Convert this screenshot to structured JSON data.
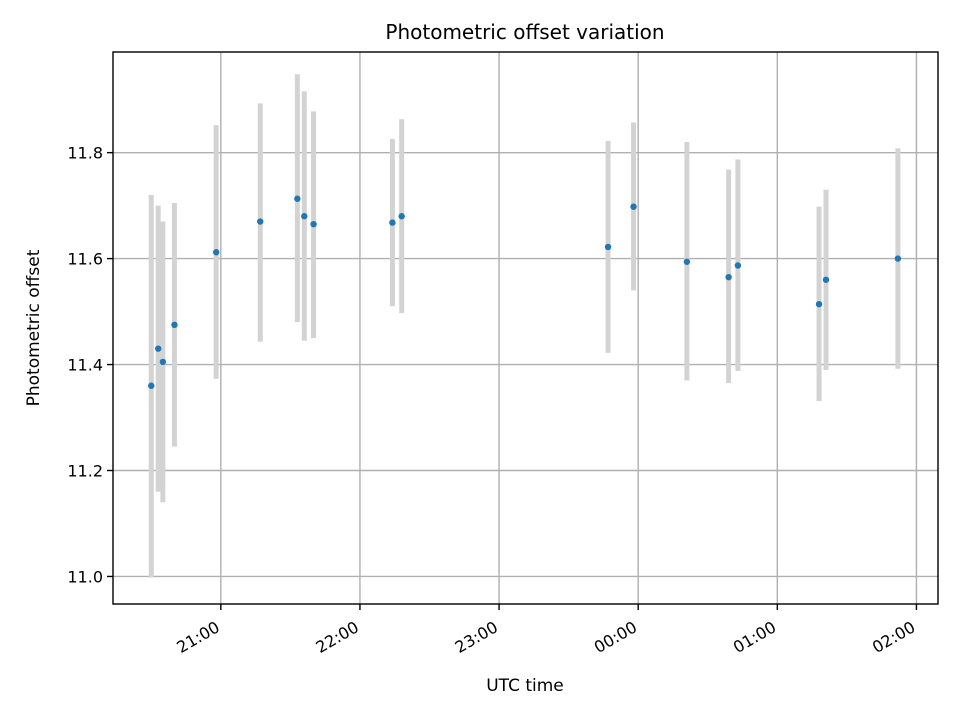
{
  "chart_data": {
    "type": "scatter",
    "title": "Photometric offset variation",
    "xlabel": "UTC time",
    "ylabel": "Photometric offset",
    "x_ticks": [
      "21:00",
      "22:00",
      "23:00",
      "00:00",
      "01:00",
      "02:00"
    ],
    "x_tick_hours": [
      21,
      22,
      23,
      24,
      25,
      26
    ],
    "xlim_hours": [
      20.225,
      26.155
    ],
    "y_ticks": [
      11.0,
      11.2,
      11.4,
      11.6,
      11.8
    ],
    "ylim": [
      10.948,
      11.99
    ],
    "grid": true,
    "colors": {
      "point": "#1f77b4",
      "errorbar": "#d3d3d3",
      "grid": "#b0b0b0"
    },
    "points": [
      {
        "time": "20:30",
        "y": 11.36,
        "ylow": 10.998,
        "yhigh": 11.72
      },
      {
        "time": "20:33",
        "y": 11.43,
        "ylow": 11.16,
        "yhigh": 11.7
      },
      {
        "time": "20:35",
        "y": 11.405,
        "ylow": 11.14,
        "yhigh": 11.67
      },
      {
        "time": "20:40",
        "y": 11.475,
        "ylow": 11.245,
        "yhigh": 11.705
      },
      {
        "time": "20:58",
        "y": 11.612,
        "ylow": 11.373,
        "yhigh": 11.852
      },
      {
        "time": "21:17",
        "y": 11.67,
        "ylow": 11.443,
        "yhigh": 11.893
      },
      {
        "time": "21:33",
        "y": 11.713,
        "ylow": 11.48,
        "yhigh": 11.948
      },
      {
        "time": "21:36",
        "y": 11.68,
        "ylow": 11.445,
        "yhigh": 11.916
      },
      {
        "time": "21:40",
        "y": 11.665,
        "ylow": 11.45,
        "yhigh": 11.878
      },
      {
        "time": "22:14",
        "y": 11.668,
        "ylow": 11.51,
        "yhigh": 11.826
      },
      {
        "time": "22:18",
        "y": 11.68,
        "ylow": 11.497,
        "yhigh": 11.863
      },
      {
        "time": "23:47",
        "y": 11.622,
        "ylow": 11.422,
        "yhigh": 11.822
      },
      {
        "time": "23:58",
        "y": 11.698,
        "ylow": 11.54,
        "yhigh": 11.857
      },
      {
        "time": "00:21",
        "y": 11.594,
        "ylow": 11.37,
        "yhigh": 11.82
      },
      {
        "time": "00:39",
        "y": 11.565,
        "ylow": 11.365,
        "yhigh": 11.768
      },
      {
        "time": "00:43",
        "y": 11.587,
        "ylow": 11.388,
        "yhigh": 11.787
      },
      {
        "time": "01:18",
        "y": 11.514,
        "ylow": 11.331,
        "yhigh": 11.698
      },
      {
        "time": "01:21",
        "y": 11.56,
        "ylow": 11.39,
        "yhigh": 11.73
      },
      {
        "time": "01:52",
        "y": 11.6,
        "ylow": 11.392,
        "yhigh": 11.808
      }
    ]
  }
}
